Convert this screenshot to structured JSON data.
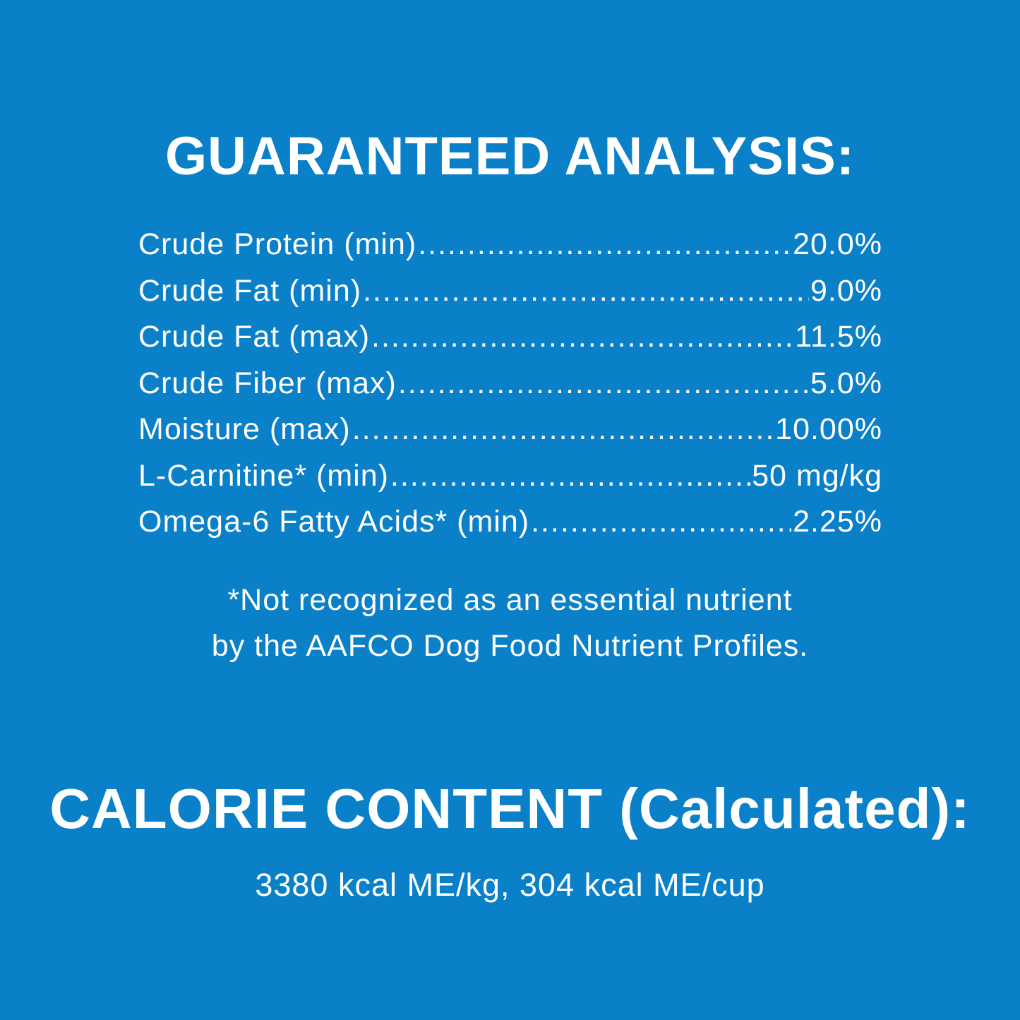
{
  "background_color": "#0a80c8",
  "guaranteed_analysis": {
    "title": "GUARANTEED ANALYSIS:",
    "rows": [
      {
        "label": "Crude Protein (min)",
        "value": "20.0%"
      },
      {
        "label": "Crude Fat (min)",
        "value": "9.0%"
      },
      {
        "label": "Crude Fat (max)",
        "value": "11.5%"
      },
      {
        "label": "Crude Fiber (max)",
        "value": "5.0%"
      },
      {
        "label": "Moisture (max)",
        "value": "10.00%"
      },
      {
        "label": "L-Carnitine* (min)",
        "value": "50 mg/kg"
      },
      {
        "label": "Omega-6 Fatty Acids* (min)",
        "value": "2.25%"
      }
    ],
    "footnote_line1": "*Not recognized as an essential nutrient",
    "footnote_line2": "by the AAFCO Dog Food Nutrient Profiles."
  },
  "calorie_content": {
    "title": "CALORIE CONTENT (Calculated):",
    "value": "3380 kcal ME/kg, 304 kcal ME/cup"
  }
}
